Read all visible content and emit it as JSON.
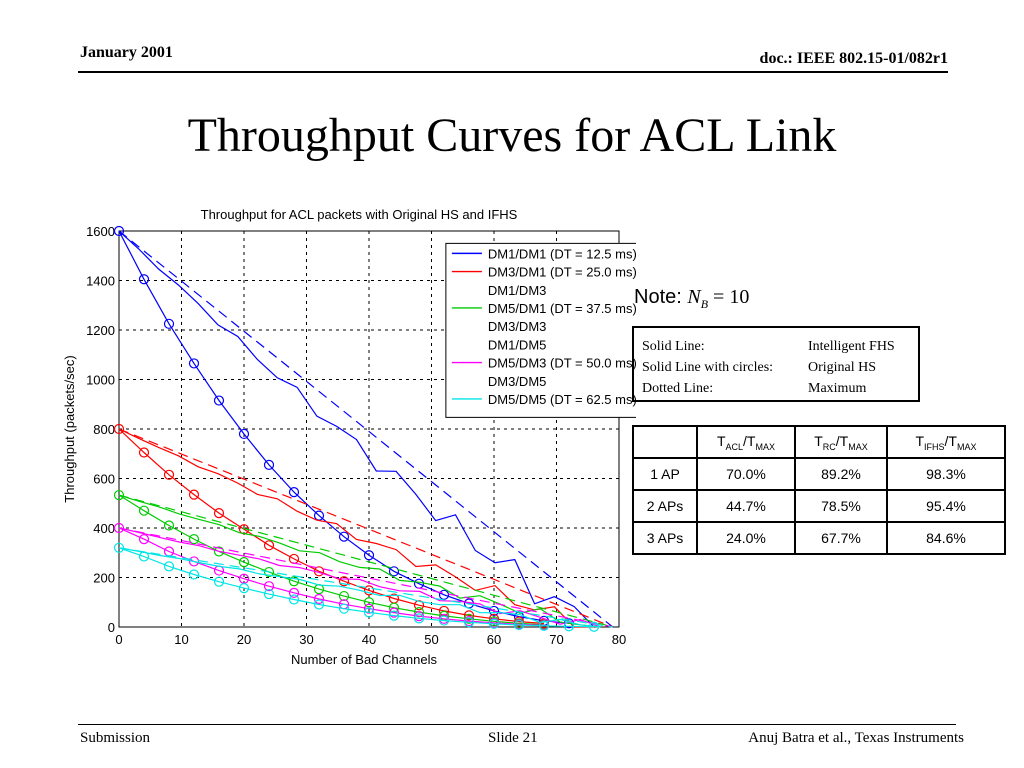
{
  "header": {
    "date": "January 2001",
    "doc": "doc.: IEEE 802.15-01/082r1"
  },
  "slide_title": "Throughput Curves for ACL Link",
  "note": {
    "prefix": "Note: ",
    "symbol": "N",
    "subscript": "B",
    "value": " = 10"
  },
  "line_legend": [
    {
      "key": "Solid Line:",
      "value": "Intelligent FHS"
    },
    {
      "key": "Solid Line with circles:",
      "value": "Original HS"
    },
    {
      "key": "Dotted Line:",
      "value": "Maximum"
    }
  ],
  "ratio_table": {
    "headers": [
      {
        "main": "",
        "sub": "",
        "main2": "",
        "sub2": ""
      },
      {
        "main": "T",
        "sub": "ACL",
        "main2": "/T",
        "sub2": "MAX"
      },
      {
        "main": "T",
        "sub": "RC",
        "main2": "/T",
        "sub2": "MAX"
      },
      {
        "main": "T",
        "sub": "IFHS",
        "main2": "/T",
        "sub2": "MAX"
      }
    ],
    "rows": [
      [
        "1 AP",
        "70.0%",
        "89.2%",
        "98.3%"
      ],
      [
        "2 APs",
        "44.7%",
        "78.5%",
        "95.4%"
      ],
      [
        "3 APs",
        "24.0%",
        "67.7%",
        "84.6%"
      ]
    ]
  },
  "footer": {
    "left": "Submission",
    "middle": "Slide 21",
    "right": "Anuj Batra et al., Texas Instruments"
  },
  "chart_data": {
    "type": "line",
    "title": "Throughput for ACL packets with Original HS and IFHS",
    "xlabel": "Number of Bad Channels",
    "ylabel": "Throughput (packets/sec)",
    "xlim": [
      0,
      80
    ],
    "ylim": [
      0,
      1600
    ],
    "xticks": [
      0,
      10,
      20,
      30,
      40,
      50,
      60,
      70,
      80
    ],
    "yticks": [
      0,
      200,
      400,
      600,
      800,
      1000,
      1200,
      1400,
      1600
    ],
    "grid": true,
    "legend_position": "top-right",
    "legend": [
      {
        "label": "DM1/DM1 (DT = 12.5 ms)",
        "color": "#0000ff"
      },
      {
        "label": "DM3/DM1 (DT = 25.0 ms)",
        "color": "#ff0000"
      },
      {
        "label": "DM1/DM3",
        "color": ""
      },
      {
        "label": "DM5/DM1 (DT = 37.5 ms)",
        "color": "#00cc00"
      },
      {
        "label": "DM3/DM3",
        "color": ""
      },
      {
        "label": "DM1/DM5",
        "color": ""
      },
      {
        "label": "DM5/DM3 (DT = 50.0 ms)",
        "color": "#ff00ff"
      },
      {
        "label": "DM3/DM5",
        "color": ""
      },
      {
        "label": "DM5/DM5 (DT = 62.5 ms)",
        "color": "#00e5e5"
      }
    ],
    "series": [
      {
        "name": "DM1/DM1 (DT = 12.5 ms)",
        "color": "#0000ff",
        "start": 1600,
        "ifhs_zero": 76,
        "original_hs": [
          [
            0,
            1600
          ],
          [
            4,
            1405
          ],
          [
            8,
            1225
          ],
          [
            12,
            1065
          ],
          [
            16,
            915
          ],
          [
            20,
            780
          ],
          [
            24,
            655
          ],
          [
            28,
            545
          ],
          [
            32,
            450
          ],
          [
            36,
            365
          ],
          [
            40,
            290
          ],
          [
            44,
            225
          ],
          [
            48,
            175
          ],
          [
            52,
            130
          ],
          [
            56,
            95
          ],
          [
            60,
            65
          ],
          [
            64,
            42
          ],
          [
            68,
            25
          ],
          [
            72,
            15
          ]
        ]
      },
      {
        "name": "DM3/DM1 (DT = 25.0 ms)",
        "color": "#ff0000",
        "start": 800,
        "ifhs_zero": 76,
        "original_hs": [
          [
            0,
            800
          ],
          [
            4,
            705
          ],
          [
            8,
            615
          ],
          [
            12,
            535
          ],
          [
            16,
            460
          ],
          [
            20,
            395
          ],
          [
            24,
            330
          ],
          [
            28,
            275
          ],
          [
            32,
            225
          ],
          [
            36,
            185
          ],
          [
            40,
            148
          ],
          [
            44,
            115
          ],
          [
            48,
            88
          ],
          [
            52,
            65
          ],
          [
            56,
            47
          ],
          [
            60,
            33
          ],
          [
            64,
            22
          ],
          [
            68,
            14
          ]
        ]
      },
      {
        "name": "DM5/DM1 (DT = 37.5 ms)",
        "color": "#00cc00",
        "start": 533,
        "ifhs_zero": 77,
        "original_hs": [
          [
            0,
            533
          ],
          [
            4,
            470
          ],
          [
            8,
            410
          ],
          [
            12,
            355
          ],
          [
            16,
            305
          ],
          [
            20,
            262
          ],
          [
            24,
            222
          ],
          [
            28,
            185
          ],
          [
            32,
            153
          ],
          [
            36,
            125
          ],
          [
            40,
            100
          ],
          [
            44,
            78
          ],
          [
            48,
            60
          ],
          [
            52,
            45
          ],
          [
            56,
            33
          ],
          [
            60,
            23
          ],
          [
            64,
            15
          ],
          [
            68,
            9
          ]
        ]
      },
      {
        "name": "DM5/DM3 (DT = 50.0 ms)",
        "color": "#ff00ff",
        "start": 400,
        "ifhs_zero": 77,
        "original_hs": [
          [
            0,
            400
          ],
          [
            4,
            355
          ],
          [
            8,
            305
          ],
          [
            12,
            265
          ],
          [
            16,
            228
          ],
          [
            20,
            195
          ],
          [
            24,
            165
          ],
          [
            28,
            138
          ],
          [
            32,
            113
          ],
          [
            36,
            92
          ],
          [
            40,
            74
          ],
          [
            44,
            58
          ],
          [
            48,
            44
          ],
          [
            52,
            33
          ],
          [
            56,
            24
          ],
          [
            60,
            17
          ],
          [
            64,
            11
          ],
          [
            68,
            7
          ]
        ]
      },
      {
        "name": "DM5/DM5 (DT = 62.5 ms)",
        "color": "#00e5e5",
        "start": 320,
        "ifhs_zero": 77,
        "original_hs": [
          [
            0,
            320
          ],
          [
            4,
            285
          ],
          [
            8,
            245
          ],
          [
            12,
            212
          ],
          [
            16,
            183
          ],
          [
            20,
            157
          ],
          [
            24,
            133
          ],
          [
            28,
            111
          ],
          [
            32,
            91
          ],
          [
            36,
            74
          ],
          [
            40,
            59
          ],
          [
            44,
            46
          ],
          [
            48,
            35
          ],
          [
            52,
            26
          ],
          [
            56,
            19
          ],
          [
            60,
            13
          ],
          [
            64,
            8
          ],
          [
            68,
            5
          ],
          [
            72,
            3
          ],
          [
            76,
            1
          ]
        ]
      }
    ],
    "maximum_zero": 79
  }
}
